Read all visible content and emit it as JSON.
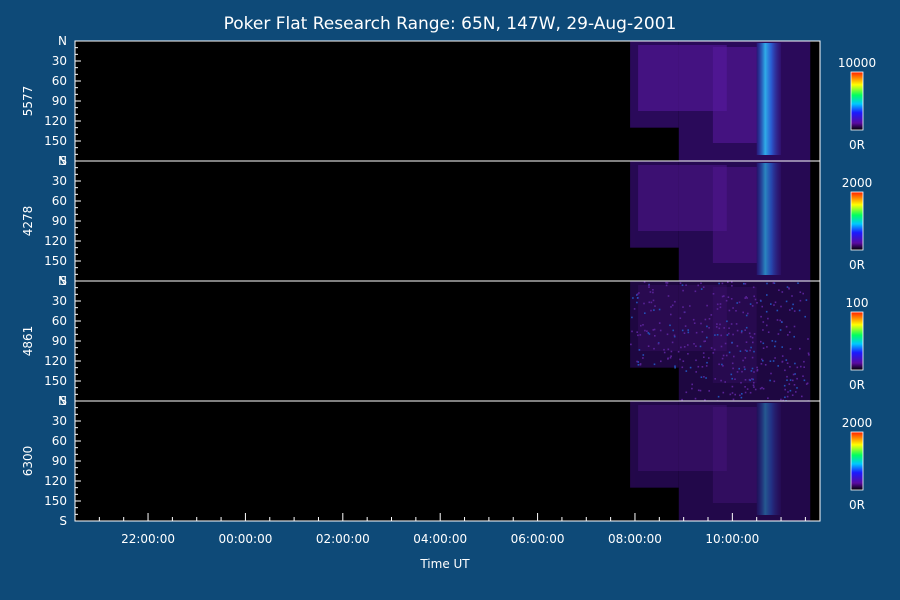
{
  "title": "Poker Flat Research Range: 65N, 147W, 29-Aug-2001",
  "xlabel": "Time UT",
  "colors": {
    "background": "#0e4a78",
    "plot_background": "#000000",
    "axis": "#ffffff",
    "emission_low": "#2a0a5a",
    "emission_mid": "#5a1aa0",
    "emission_high": "#2a8cff",
    "emission_peak": "#3ee6ff"
  },
  "chart_data": {
    "type": "heatmap",
    "title": "Poker Flat Research Range: 65N, 147W, 29-Aug-2001",
    "xlabel": "Time UT",
    "x_ticks": [
      "22:00:00",
      "00:00:00",
      "02:00:00",
      "04:00:00",
      "06:00:00",
      "08:00:00",
      "10:00:00"
    ],
    "x_range_hours": [
      20.5,
      35.8
    ],
    "x_tick_hours": [
      22,
      24,
      26,
      28,
      30,
      32,
      34
    ],
    "y_range": [
      0,
      180
    ],
    "y_ticks": [
      "N",
      "30",
      "60",
      "90",
      "120",
      "150",
      "S"
    ],
    "y_tick_values": [
      0,
      30,
      60,
      90,
      120,
      150,
      180
    ],
    "data_start_hour": 31.9,
    "data_end_hour": 35.6,
    "partial_low_until_hour": 32.9,
    "partial_low_from_y": 130,
    "bright_band_hour": [
      34.5,
      35.0
    ],
    "panels": [
      {
        "name": "5577",
        "cbar_max": "10000",
        "cbar_min": "0R",
        "intensity": 0.9
      },
      {
        "name": "4278",
        "cbar_max": "2000",
        "cbar_min": "0R",
        "intensity": 0.75
      },
      {
        "name": "4861",
        "cbar_max": "100",
        "cbar_min": "0R",
        "intensity": 0.35
      },
      {
        "name": "6300",
        "cbar_max": "2000",
        "cbar_min": "0R",
        "intensity": 0.55
      }
    ]
  }
}
